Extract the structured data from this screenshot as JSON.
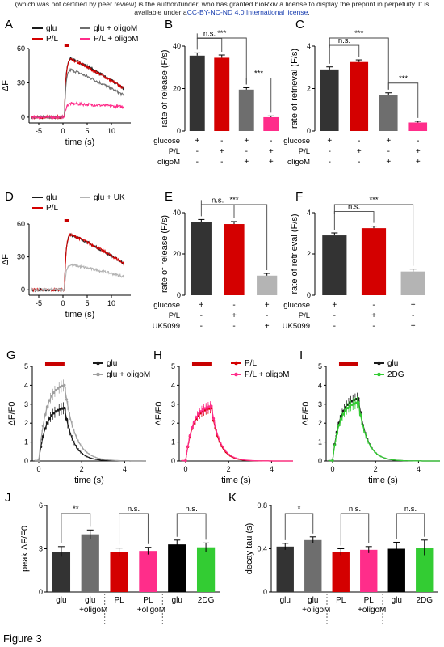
{
  "banner": {
    "line1": "(which was not certified by peer review) is the author/funder, who has granted bioRxiv a license to display the preprint in perpetuity. It is",
    "line2_pre": "available under a",
    "line2_link": "CC-BY-NC-ND 4.0 International license",
    "line2_post": "."
  },
  "figure_caption": "Figure 3",
  "colors": {
    "glu": "#1a1a1a",
    "pl": "#d40000",
    "glu_oligo": "#6e6e6e",
    "pl_oligo": "#ff2d8a",
    "uk": "#b4b4b4",
    "twodg": "#33cc33",
    "stim": "#c80000"
  },
  "chart_data": [
    {
      "id": "A",
      "panel_label": "A",
      "type": "line",
      "xlabel": "time (s)",
      "ylabel": "ΔF",
      "xlim": [
        -7,
        14
      ],
      "ylim": [
        -5,
        60
      ],
      "xticks": [
        -5,
        0,
        5,
        10
      ],
      "yticks": [
        0,
        30,
        60
      ],
      "stim": [
        0.3,
        1.2
      ],
      "series": [
        {
          "key": "glu",
          "name": "glu",
          "color": "#1a1a1a",
          "baseline": 0,
          "peak": 52,
          "end": 25
        },
        {
          "key": "pl",
          "name": "P/L",
          "color": "#d40000",
          "baseline": 0,
          "peak": 51,
          "end": 25
        },
        {
          "key": "glu_oligo",
          "name": "glu + oligoM",
          "color": "#6e6e6e",
          "baseline": 0,
          "peak": 42,
          "end": 19
        },
        {
          "key": "pl_oligo",
          "name": "P/L + oligoM",
          "color": "#ff2d8a",
          "baseline": 0,
          "peak": 12,
          "end": 9
        }
      ]
    },
    {
      "id": "B",
      "panel_label": "B",
      "type": "bar",
      "ylabel": "rate of release (F/s)",
      "ylim": [
        0,
        40
      ],
      "yticks": [
        0,
        20,
        40
      ],
      "values": [
        35.5,
        34.5,
        19.5,
        6.5
      ],
      "errors": [
        1.3,
        1.3,
        0.9,
        0.6
      ],
      "colors": [
        "#333333",
        "#d40000",
        "#6e6e6e",
        "#ff2d8a"
      ],
      "conditions": [
        {
          "label": "glucose",
          "marks": [
            "+",
            "-",
            "+",
            "-"
          ]
        },
        {
          "label": "P/L",
          "marks": [
            "-",
            "+",
            "-",
            "+"
          ]
        },
        {
          "label": "oligoM",
          "marks": [
            "-",
            "-",
            "+",
            "+"
          ]
        }
      ],
      "sig": [
        {
          "i": 0,
          "j": 1,
          "label": "n.s."
        },
        {
          "i": 0,
          "j": 2,
          "label": "***"
        },
        {
          "i": 2,
          "j": 3,
          "label": "***"
        }
      ]
    },
    {
      "id": "C",
      "panel_label": "C",
      "type": "bar",
      "ylabel": "rate of retrieval (F/s)",
      "ylim": [
        0,
        4
      ],
      "yticks": [
        0,
        2,
        4
      ],
      "values": [
        2.9,
        3.25,
        1.7,
        0.4
      ],
      "errors": [
        0.12,
        0.1,
        0.1,
        0.06
      ],
      "colors": [
        "#333333",
        "#d40000",
        "#6e6e6e",
        "#ff2d8a"
      ],
      "conditions": [
        {
          "label": "glucose",
          "marks": [
            "+",
            "-",
            "+",
            "-"
          ]
        },
        {
          "label": "P/L",
          "marks": [
            "-",
            "+",
            "-",
            "+"
          ]
        },
        {
          "label": "oligoM",
          "marks": [
            "-",
            "-",
            "+",
            "+"
          ]
        }
      ],
      "sig": [
        {
          "i": 0,
          "j": 1,
          "label": "n.s."
        },
        {
          "i": 0,
          "j": 2,
          "label": "***"
        },
        {
          "i": 2,
          "j": 3,
          "label": "***"
        }
      ]
    },
    {
      "id": "D",
      "panel_label": "D",
      "type": "line",
      "xlabel": "time (s)",
      "ylabel": "ΔF",
      "xlim": [
        -7,
        14
      ],
      "ylim": [
        -5,
        60
      ],
      "xticks": [
        -5,
        0,
        5,
        10
      ],
      "yticks": [
        0,
        30,
        60
      ],
      "stim": [
        0.3,
        1.2
      ],
      "series": [
        {
          "key": "glu",
          "name": "glu",
          "color": "#1a1a1a",
          "baseline": 0,
          "peak": 51,
          "end": 24
        },
        {
          "key": "pl",
          "name": "P/L",
          "color": "#d40000",
          "baseline": 0,
          "peak": 51,
          "end": 24
        },
        {
          "key": "uk",
          "name": "glu + UK",
          "color": "#b4b4b4",
          "baseline": 0,
          "peak": 23,
          "end": 12
        }
      ]
    },
    {
      "id": "E",
      "panel_label": "E",
      "type": "bar",
      "ylabel": "rate of release (F/s)",
      "ylim": [
        0,
        40
      ],
      "yticks": [
        0,
        20,
        40
      ],
      "values": [
        35.5,
        34.5,
        9.5
      ],
      "errors": [
        1.2,
        1.2,
        1.1
      ],
      "colors": [
        "#333333",
        "#d40000",
        "#b4b4b4"
      ],
      "conditions": [
        {
          "label": "glucose",
          "marks": [
            "+",
            "-",
            "+"
          ]
        },
        {
          "label": "P/L",
          "marks": [
            "-",
            "+",
            "-"
          ]
        },
        {
          "label": "UK5099",
          "marks": [
            "-",
            "-",
            "+"
          ]
        }
      ],
      "sig": [
        {
          "i": 0,
          "j": 1,
          "label": "n.s."
        },
        {
          "i": 0,
          "j": 2,
          "label": "***"
        }
      ]
    },
    {
      "id": "F",
      "panel_label": "F",
      "type": "bar",
      "ylabel": "rate of retrieval (F/s)",
      "ylim": [
        0,
        4
      ],
      "yticks": [
        0,
        2,
        4
      ],
      "values": [
        2.9,
        3.25,
        1.15
      ],
      "errors": [
        0.12,
        0.1,
        0.12
      ],
      "colors": [
        "#333333",
        "#d40000",
        "#b4b4b4"
      ],
      "conditions": [
        {
          "label": "glucose",
          "marks": [
            "+",
            "-",
            "+"
          ]
        },
        {
          "label": "P/L",
          "marks": [
            "-",
            "+",
            "-"
          ]
        },
        {
          "label": "UK5099",
          "marks": [
            "-",
            "-",
            "+"
          ]
        }
      ],
      "sig": [
        {
          "i": 0,
          "j": 1,
          "label": "n.s."
        },
        {
          "i": 0,
          "j": 2,
          "label": "***"
        }
      ]
    },
    {
      "id": "G",
      "panel_label": "G",
      "type": "line",
      "xlabel": "time (s)",
      "ylabel": "ΔF/F0",
      "xlim": [
        -0.3,
        5
      ],
      "ylim": [
        0,
        5
      ],
      "xticks": [
        0,
        2,
        4
      ],
      "yticks": [
        0,
        1,
        2,
        3,
        4,
        5
      ],
      "stim": [
        0.3,
        1.2
      ],
      "series": [
        {
          "key": "glu",
          "name": "glu",
          "color": "#1a1a1a",
          "peak": 2.8,
          "tau": 0.42,
          "err": 0.3
        },
        {
          "key": "glu_oligo",
          "name": "glu + oligoM",
          "color": "#a0a0a0",
          "peak": 4.0,
          "tau": 0.48,
          "err": 0.3
        }
      ]
    },
    {
      "id": "H",
      "panel_label": "H",
      "type": "line",
      "xlabel": "time (s)",
      "ylabel": "ΔF/F0",
      "xlim": [
        -0.3,
        5
      ],
      "ylim": [
        0,
        5
      ],
      "xticks": [
        0,
        2,
        4
      ],
      "yticks": [
        0,
        1,
        2,
        3,
        4,
        5
      ],
      "stim": [
        0.3,
        1.2
      ],
      "series": [
        {
          "key": "pl",
          "name": "P/L",
          "color": "#d40000",
          "peak": 2.8,
          "tau": 0.37,
          "err": 0.25
        },
        {
          "key": "pl_oligo",
          "name": "P/L + oligoM",
          "color": "#ff2d8a",
          "peak": 2.9,
          "tau": 0.39,
          "err": 0.25
        }
      ]
    },
    {
      "id": "I",
      "panel_label": "I",
      "type": "line",
      "xlabel": "time (s)",
      "ylabel": "ΔF/F0",
      "xlim": [
        -0.3,
        5
      ],
      "ylim": [
        0,
        5
      ],
      "xticks": [
        0,
        2,
        4
      ],
      "yticks": [
        0,
        1,
        2,
        3,
        4,
        5
      ],
      "stim": [
        0.3,
        1.2
      ],
      "series": [
        {
          "key": "glu",
          "name": "glu",
          "color": "#1a1a1a",
          "peak": 3.3,
          "tau": 0.4,
          "err": 0.3
        },
        {
          "key": "twodg",
          "name": "2DG",
          "color": "#33cc33",
          "peak": 3.1,
          "tau": 0.41,
          "err": 0.3
        }
      ]
    },
    {
      "id": "J",
      "panel_label": "J",
      "type": "bar",
      "ylabel": "peak  ΔF/F0",
      "ylim": [
        0,
        6
      ],
      "yticks": [
        0,
        3,
        6
      ],
      "categories": [
        [
          "glu"
        ],
        [
          "glu",
          "+oligoM"
        ],
        [
          "PL"
        ],
        [
          "PL",
          "+oligoM"
        ],
        [
          "glu"
        ],
        [
          "2DG"
        ]
      ],
      "values": [
        2.8,
        4.0,
        2.75,
        2.85,
        3.3,
        3.1
      ],
      "errors": [
        0.35,
        0.3,
        0.3,
        0.25,
        0.3,
        0.3
      ],
      "colors": [
        "#333333",
        "#6e6e6e",
        "#d40000",
        "#ff2d8a",
        "#000000",
        "#33cc33"
      ],
      "dividers": [
        1.5,
        3.5
      ],
      "sig": [
        {
          "i": 0,
          "j": 1,
          "label": "**"
        },
        {
          "i": 2,
          "j": 3,
          "label": "n.s."
        },
        {
          "i": 4,
          "j": 5,
          "label": "n.s."
        }
      ]
    },
    {
      "id": "K",
      "panel_label": "K",
      "type": "bar",
      "ylabel": "decay tau (s)",
      "ylim": [
        0,
        0.8
      ],
      "yticks": [
        0.0,
        0.4,
        0.8
      ],
      "categories": [
        [
          "glu"
        ],
        [
          "glu",
          "+oligoM"
        ],
        [
          "PL"
        ],
        [
          "PL",
          "+oligoM"
        ],
        [
          "glu"
        ],
        [
          "2DG"
        ]
      ],
      "values": [
        0.42,
        0.48,
        0.37,
        0.39,
        0.4,
        0.41
      ],
      "errors": [
        0.03,
        0.03,
        0.03,
        0.03,
        0.06,
        0.07
      ],
      "colors": [
        "#333333",
        "#6e6e6e",
        "#d40000",
        "#ff2d8a",
        "#000000",
        "#33cc33"
      ],
      "dividers": [
        1.5,
        3.5
      ],
      "sig": [
        {
          "i": 0,
          "j": 1,
          "label": "*"
        },
        {
          "i": 2,
          "j": 3,
          "label": "n.s."
        },
        {
          "i": 4,
          "j": 5,
          "label": "n.s."
        }
      ]
    }
  ]
}
